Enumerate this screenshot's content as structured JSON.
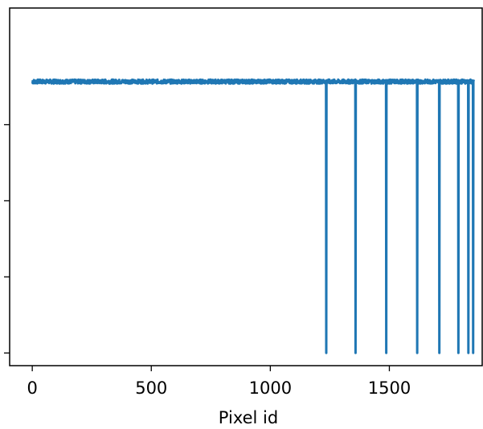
{
  "chart_data": {
    "type": "line",
    "title": "",
    "xlabel": "Pixel id",
    "ylabel": "",
    "xlim": [
      -95,
      1890
    ],
    "ylim": [
      -0.05,
      1.36
    ],
    "xticks": [
      0,
      500,
      1000,
      1500
    ],
    "xtick_labels": [
      "0",
      "500",
      "1000",
      "1500"
    ],
    "yticks": [
      0,
      0.3,
      0.6,
      0.9
    ],
    "ytick_labels": [
      "",
      "",
      "",
      ""
    ],
    "grid": false,
    "legend": "none",
    "series": [
      {
        "color": "#1f77b4",
        "baseline": 1.07,
        "noise_amplitude": 0.008,
        "x_start": 0,
        "x_end": 1855,
        "dips": [
          {
            "x": 1235,
            "y": 0.0
          },
          {
            "x": 1358,
            "y": 0.0
          },
          {
            "x": 1487,
            "y": 0.0
          },
          {
            "x": 1617,
            "y": 0.0
          },
          {
            "x": 1710,
            "y": 0.0
          },
          {
            "x": 1790,
            "y": 0.0
          },
          {
            "x": 1832,
            "y": 0.0
          },
          {
            "x": 1852,
            "y": 0.0
          }
        ]
      }
    ]
  }
}
